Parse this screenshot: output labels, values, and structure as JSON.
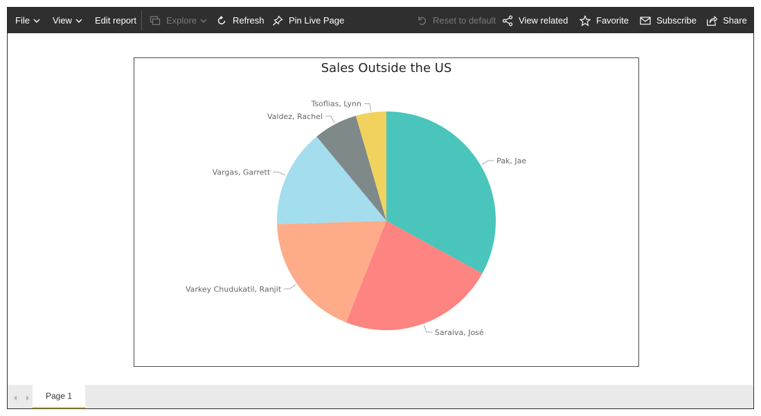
{
  "toolbar": {
    "file": "File",
    "view": "View",
    "edit_report": "Edit report",
    "explore": "Explore",
    "refresh": "Refresh",
    "pin_live_page": "Pin Live Page",
    "reset_to_default": "Reset to default",
    "view_related": "View related",
    "favorite": "Favorite",
    "subscribe": "Subscribe",
    "share": "Share"
  },
  "colors": {
    "toolbar_bg": "#2f2f2f",
    "tab_accent": "#f2c811"
  },
  "pages": [
    {
      "label": "Page 1",
      "active": true
    }
  ],
  "chart_data": {
    "type": "pie",
    "title": "Sales Outside the US",
    "slices": [
      {
        "label": "Pak, Jae",
        "value": 33.0,
        "color": "#4ac5bb"
      },
      {
        "label": "Saraiva, José",
        "value": 23.0,
        "color": "#fd8480"
      },
      {
        "label": "Varkey Chudukatil, Ranjit",
        "value": 18.5,
        "color": "#fdab89"
      },
      {
        "label": "Vargas, Garrett",
        "value": 14.5,
        "color": "#a4ddee"
      },
      {
        "label": "Valdez, Rachel",
        "value": 6.5,
        "color": "#7f898a"
      },
      {
        "label": "Tsoflias, Lynn",
        "value": 4.5,
        "color": "#f2d25e"
      }
    ]
  }
}
